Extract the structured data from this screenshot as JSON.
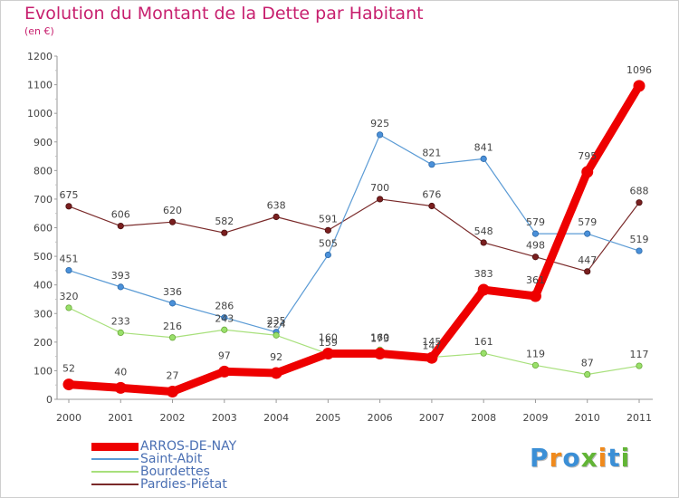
{
  "chart_data": {
    "type": "line",
    "title": "Evolution du Montant de la Dette par Habitant",
    "subtitle": "(en €)",
    "x": [
      "2000",
      "2001",
      "2002",
      "2003",
      "2004",
      "2005",
      "2006",
      "2007",
      "2008",
      "2009",
      "2010",
      "2011"
    ],
    "ylim": [
      0,
      1200
    ],
    "yticks": [
      0,
      100,
      200,
      300,
      400,
      500,
      600,
      700,
      800,
      900,
      1000,
      1100,
      1200
    ],
    "grid": false,
    "legend_position": "bottom-left",
    "series": [
      {
        "name": "ARROS-DE-NAY",
        "color": "#ee0000",
        "values": [
          52,
          40,
          27,
          97,
          92,
          160,
          160,
          145,
          383,
          361,
          795,
          1096
        ],
        "labels": [
          "52",
          "40",
          "27",
          "97",
          "92",
          "160",
          "160",
          "145",
          "383",
          "361",
          "795",
          "1096"
        ]
      },
      {
        "name": "Saint-Abit",
        "color": "#5b9bd5",
        "values": [
          451,
          393,
          336,
          286,
          235,
          505,
          925,
          821,
          841,
          579,
          579,
          519
        ],
        "labels": [
          "451",
          "393",
          "336",
          "286",
          "235",
          "505",
          "925",
          "821",
          "841",
          "579",
          "579",
          "519"
        ]
      },
      {
        "name": "Bourdettes",
        "color": "#99e06a",
        "values": [
          320,
          233,
          216,
          243,
          224,
          159,
          173,
          147,
          161,
          119,
          87,
          117
        ],
        "labels": [
          "320",
          "233",
          "216",
          "243",
          "224",
          "159",
          "173",
          "147",
          "161",
          "119",
          "87",
          "117"
        ]
      },
      {
        "name": "Pardies-Piétat",
        "color": "#7a2a2a",
        "values": [
          675,
          606,
          620,
          582,
          638,
          591,
          700,
          676,
          548,
          498,
          447,
          688
        ],
        "labels": [
          "675",
          "606",
          "620",
          "582",
          "638",
          "591",
          "700",
          "676",
          "548",
          "498",
          "447",
          "688"
        ]
      }
    ]
  },
  "logo": {
    "text": "Proxiti",
    "colors": [
      "#3b8fd6",
      "#f08a1c",
      "#3b8fd6",
      "#62b536",
      "#f08a1c",
      "#3b8fd6",
      "#62b536"
    ]
  }
}
